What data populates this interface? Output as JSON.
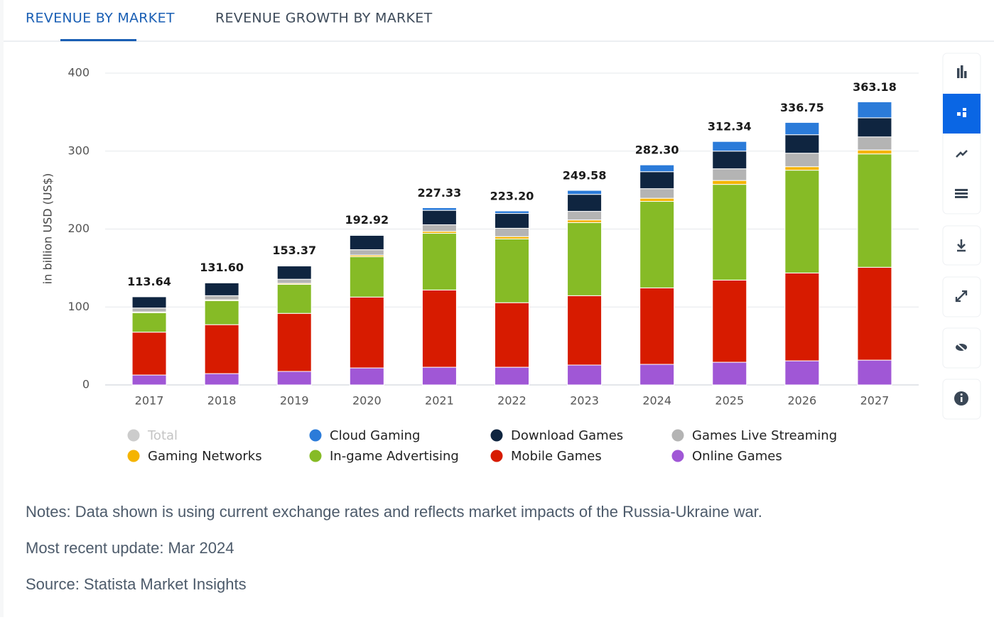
{
  "tabs": [
    "REVENUE BY MARKET",
    "REVENUE GROWTH BY MARKET"
  ],
  "chart_data": {
    "type": "stacked-bar",
    "y_label": "in billion USD (US$)",
    "categories": [
      "2017",
      "2018",
      "2019",
      "2020",
      "2021",
      "2022",
      "2023",
      "2024",
      "2025",
      "2026",
      "2027"
    ],
    "ylim": [
      0,
      400
    ],
    "yticks": [
      0,
      100,
      200,
      300,
      400
    ],
    "grid": true,
    "series": [
      {
        "name": "Total",
        "color": "#c8c8c8",
        "hidden": true,
        "values": [
          113.64,
          131.6,
          153.37,
          192.92,
          227.33,
          223.2,
          249.58,
          282.3,
          312.34,
          336.75,
          363.18
        ],
        "value_labels": [
          "113.64",
          "131.60",
          "153.37",
          "192.92",
          "227.33",
          "223.20",
          "249.58",
          "282.30",
          "312.34",
          "336.75",
          "363.18"
        ]
      },
      {
        "name": "Cloud Gaming",
        "color": "#2b7bd9",
        "values": [
          0.44,
          0.6,
          0.77,
          1.02,
          3.33,
          3.2,
          5.08,
          8.7,
          12.34,
          15.75,
          20.48
        ]
      },
      {
        "name": "Download Games",
        "color": "#0f2540",
        "values": [
          14.5,
          16.5,
          17,
          18.4,
          18.5,
          19,
          21.8,
          21.8,
          22.7,
          23.7,
          24.5
        ]
      },
      {
        "name": "Games Live Streaming",
        "color": "#b4b4b4",
        "values": [
          5,
          5.3,
          5.3,
          7,
          8.5,
          10.7,
          11,
          12.3,
          15,
          17.3,
          16.8
        ]
      },
      {
        "name": "Gaming Networks",
        "color": "#f5b400",
        "values": [
          1,
          1,
          1.2,
          2,
          2.5,
          3,
          3.5,
          4,
          5,
          4.5,
          5
        ]
      },
      {
        "name": "In-game Advertising",
        "color": "#86bb26",
        "values": [
          25,
          30.9,
          37.3,
          51.8,
          72.7,
          81.8,
          93.7,
          111,
          122.8,
          131.9,
          145.5
        ]
      },
      {
        "name": "Mobile Games",
        "color": "#d71b00",
        "values": [
          55,
          62.8,
          74.5,
          90.9,
          99.1,
          82.8,
          89,
          98.1,
          105.4,
          112.7,
          119.1
        ]
      },
      {
        "name": "Online Games",
        "color": "#a057d6",
        "values": [
          12.7,
          14.5,
          17.3,
          21.8,
          22.7,
          22.7,
          25.5,
          26.4,
          29.1,
          30.9,
          31.8
        ]
      }
    ]
  },
  "notes": [
    "Notes: Data shown is using current exchange rates and reflects market impacts of the Russia-Ukraine war.",
    "Most recent update: Mar 2024",
    "Source: Statista Market Insights"
  ]
}
